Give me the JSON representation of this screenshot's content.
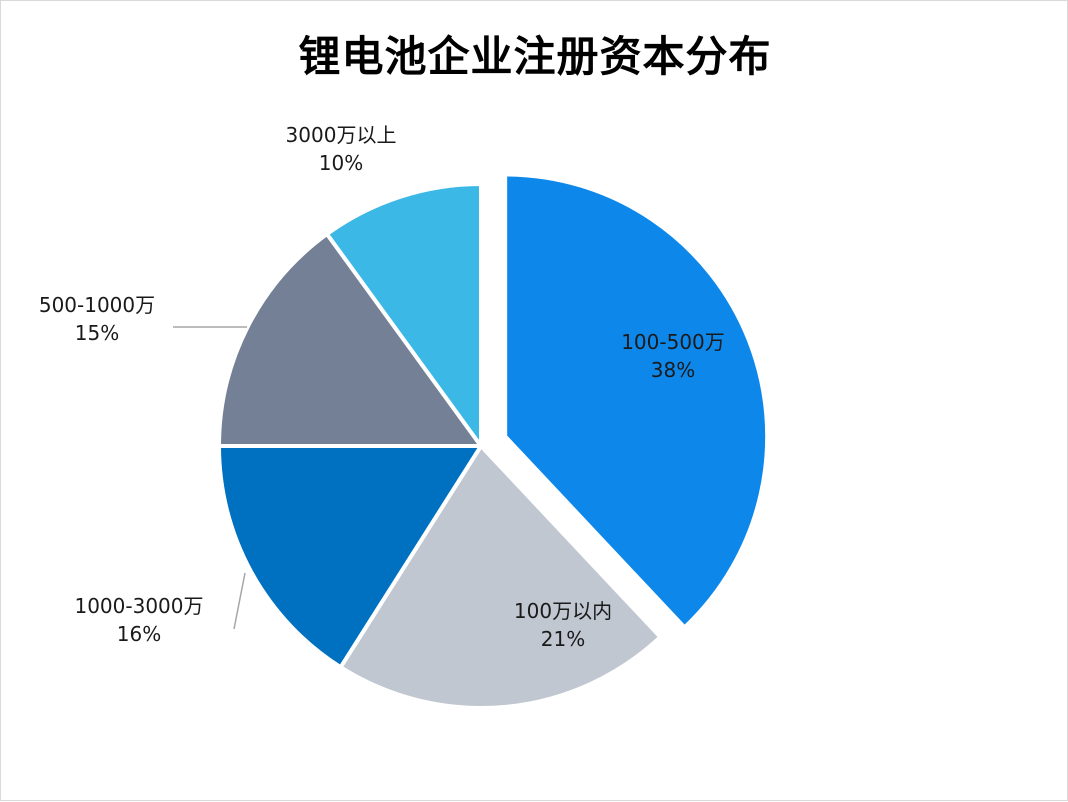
{
  "chart_data": {
    "type": "pie",
    "title": "锂电池企业注册资本分布",
    "slices": [
      {
        "name": "100-500万",
        "value": 38,
        "label": "38%",
        "color": "#0d88ea",
        "exploded": true
      },
      {
        "name": "100万以内",
        "value": 21,
        "label": "21%",
        "color": "#c0c7d1",
        "exploded": false
      },
      {
        "name": "1000-3000万",
        "value": 16,
        "label": "16%",
        "color": "#0070c0",
        "exploded": false
      },
      {
        "name": "500-1000万",
        "value": 15,
        "label": "15%",
        "color": "#748096",
        "exploded": false
      },
      {
        "name": "3000万以上",
        "value": 10,
        "label": "10%",
        "color": "#3bb8e6",
        "exploded": false
      }
    ],
    "legend": "none",
    "data_labels": "category and percent"
  }
}
